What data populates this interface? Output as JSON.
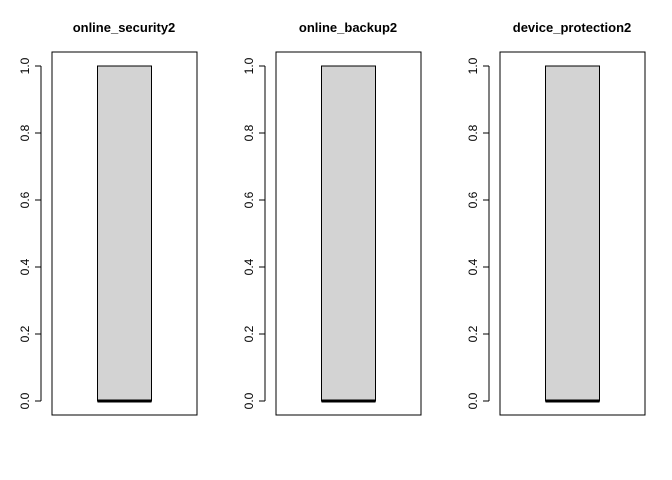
{
  "chart_data": [
    {
      "type": "box",
      "title": "online_security2",
      "ylim": [
        0,
        1
      ],
      "y_ticks": [
        "0.0",
        "0.2",
        "0.4",
        "0.6",
        "0.8",
        "1.0"
      ],
      "stats": {
        "min": 0,
        "q1": 0,
        "median": 0,
        "q3": 1,
        "max": 1
      },
      "colors": {
        "box_fill": "#d3d3d3",
        "line": "#000000"
      }
    },
    {
      "type": "box",
      "title": "online_backup2",
      "ylim": [
        0,
        1
      ],
      "y_ticks": [
        "0.0",
        "0.2",
        "0.4",
        "0.6",
        "0.8",
        "1.0"
      ],
      "stats": {
        "min": 0,
        "q1": 0,
        "median": 0,
        "q3": 1,
        "max": 1
      },
      "colors": {
        "box_fill": "#d3d3d3",
        "line": "#000000"
      }
    },
    {
      "type": "box",
      "title": "device_protection2",
      "ylim": [
        0,
        1
      ],
      "y_ticks": [
        "0.0",
        "0.2",
        "0.4",
        "0.6",
        "0.8",
        "1.0"
      ],
      "stats": {
        "min": 0,
        "q1": 0,
        "median": 0,
        "q3": 1,
        "max": 1
      },
      "colors": {
        "box_fill": "#d3d3d3",
        "line": "#000000"
      }
    }
  ]
}
